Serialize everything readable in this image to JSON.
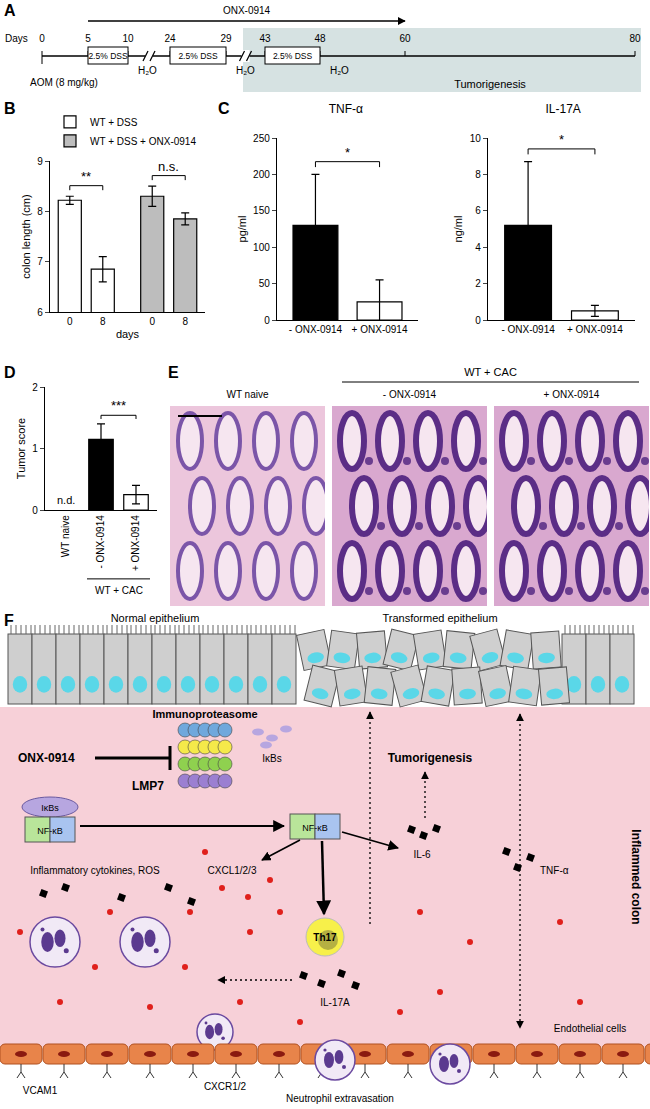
{
  "panel_labels": [
    "A",
    "B",
    "C",
    "D",
    "E",
    "F"
  ],
  "timeline": {
    "drug": "ONX-0914",
    "drug_period": [
      5,
      60
    ],
    "axis_label": "Days",
    "days": [
      0,
      5,
      10,
      24,
      29,
      43,
      48,
      60,
      80
    ],
    "treatment": "2.5% DSS",
    "treatment_periods": [
      [
        5,
        10
      ],
      [
        24,
        29
      ],
      [
        43,
        48
      ]
    ],
    "water": "H₂O",
    "water_periods": [
      [
        10,
        24
      ],
      [
        29,
        43
      ],
      [
        48,
        80
      ]
    ],
    "injection": "AOM (8 mg/kg)",
    "injection_day": 0,
    "phase": "Tumorigenesis",
    "phase_period": [
      43,
      80
    ]
  },
  "chart_data": [
    {
      "type": "bar",
      "y_label": "colon length (cm)",
      "x_label": "days",
      "categories": [
        "0",
        "8"
      ],
      "series": [
        {
          "name": "WT + DSS",
          "color": "#ffffff",
          "values": [
            8.22,
            6.85
          ],
          "errors": [
            0.08,
            0.25
          ]
        },
        {
          "name": "WT + DSS + ONX-0914",
          "color": "#bdbdbd",
          "values": [
            8.3,
            7.85
          ],
          "errors": [
            0.2,
            0.12
          ]
        }
      ],
      "ylim": [
        6,
        9
      ],
      "yticks": [
        6,
        7,
        8,
        9
      ],
      "grid": false,
      "legend": "top",
      "annotations": [
        {
          "text": "**",
          "series": "WT + DSS"
        },
        {
          "text": "n.s.",
          "series": "WT + DSS + ONX-0914"
        }
      ]
    },
    {
      "type": "bar",
      "title": "TNF-α",
      "y_label": "pg/ml",
      "categories": [
        "- ONX-0914",
        "+ ONX-0914"
      ],
      "values": [
        130,
        25
      ],
      "errors": [
        70,
        30
      ],
      "colors": [
        "#000000",
        "#ffffff"
      ],
      "ylim": [
        0,
        250
      ],
      "yticks": [
        0,
        50,
        100,
        150,
        200,
        250
      ],
      "grid": false,
      "annotations": [
        {
          "text": "*"
        }
      ]
    },
    {
      "type": "bar",
      "title": "IL-17A",
      "y_label": "ng/ml",
      "categories": [
        "- ONX-0914",
        "+ ONX-0914"
      ],
      "values": [
        5.2,
        0.5
      ],
      "errors": [
        3.5,
        0.3
      ],
      "colors": [
        "#000000",
        "#ffffff"
      ],
      "ylim": [
        0,
        10
      ],
      "yticks": [
        0,
        2,
        4,
        6,
        8,
        10
      ],
      "grid": false,
      "annotations": [
        {
          "text": "*"
        }
      ]
    },
    {
      "type": "bar",
      "y_label": "Tumor score",
      "categories": [
        "WT naive",
        "- ONX-0914",
        "+ ONX-0914"
      ],
      "values": [
        null,
        1.15,
        0.25
      ],
      "errors": [
        null,
        0.25,
        0.15
      ],
      "colors": [
        "#000000",
        "#000000",
        "#ffffff"
      ],
      "ylim": [
        0,
        2
      ],
      "yticks": [
        0,
        1,
        2
      ],
      "grid": false,
      "annotations": [
        {
          "text": "n.d.",
          "categories": [
            "WT naive"
          ]
        },
        {
          "text": "***",
          "categories": [
            "- ONX-0914",
            "+ ONX-0914"
          ]
        }
      ],
      "groups": [
        {
          "label": "WT + CAC",
          "categories": [
            "- ONX-0914",
            "+ ONX-0914"
          ]
        }
      ]
    }
  ],
  "histology": {
    "labels": [
      "WT naive",
      "- ONX-0914",
      "+ ONX-0914"
    ],
    "group": "WT + CAC"
  },
  "schematic": {
    "normal": "Normal epithelium",
    "transformed": "Transformed epithelium",
    "inhibitor": "ONX-0914",
    "complex": "Immunoproteasome",
    "subunit": "LMP7",
    "inhibitor_protein": "IκBs",
    "factor": "NF-κB",
    "outcome": "Tumorigenesis",
    "cytokine_1": "IL-6",
    "cytokine_2": "TNF-α",
    "tissue": "Inflammed colon",
    "mediators": "Inflammatory cytokines, ROS",
    "chemokines": "CXCL1/2/3",
    "cell": "Th17",
    "cytokine_3": "IL-17A",
    "endothelium": "Endothelial cells",
    "adhesion": "VCAM1",
    "receptor": "CXCR1/2",
    "process": "Neutrophil extravasation"
  }
}
